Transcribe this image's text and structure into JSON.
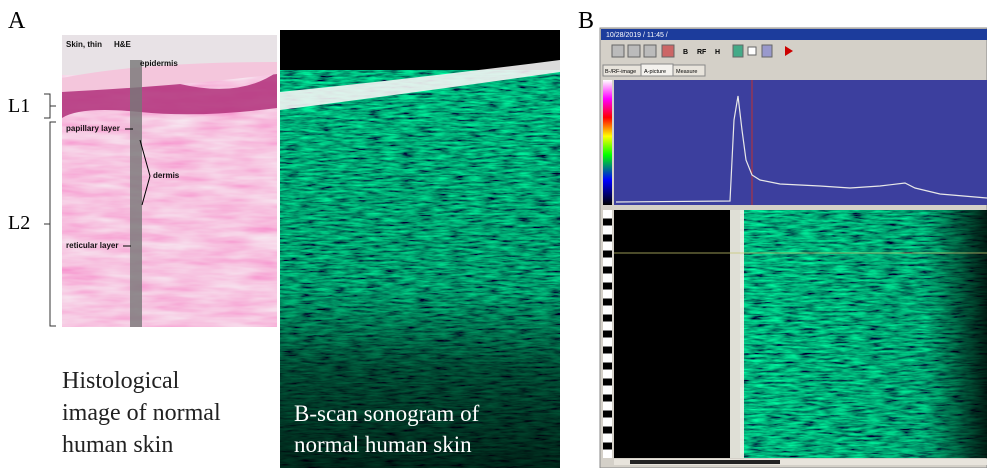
{
  "panel_a": {
    "label": "A",
    "layers": [
      "L1",
      "L2"
    ],
    "histology": {
      "title": "Skin, thin",
      "stain": "H&E",
      "labels": [
        "epidermis",
        "papillary layer",
        "dermis",
        "reticular layer"
      ],
      "caption": [
        "Histological",
        "image of normal",
        "human skin"
      ]
    },
    "sonogram": {
      "caption": [
        "B-scan sonogram of",
        "normal human skin"
      ]
    }
  },
  "panel_b": {
    "label": "B",
    "window_title": "10/28/2019 / 11:45 /",
    "toolbar": [
      "B",
      "RF",
      "H"
    ],
    "tabs": [
      "B-/RF-image",
      "A-picture",
      "Measure"
    ]
  }
}
